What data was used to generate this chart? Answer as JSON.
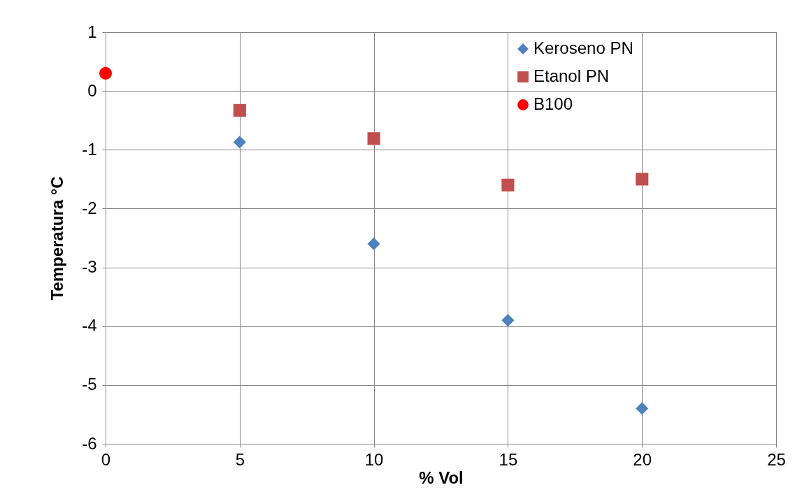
{
  "chart_data": {
    "type": "scatter",
    "xlabel": "% Vol",
    "ylabel": "Temperatura °C",
    "xlim": [
      0,
      25
    ],
    "xticks": [
      0,
      5,
      10,
      15,
      20,
      25
    ],
    "ylim": [
      -6,
      1
    ],
    "yticks": [
      -6,
      -5,
      -4,
      -3,
      -2,
      -1,
      0,
      1
    ],
    "grid": true,
    "legend": "top right",
    "series": [
      {
        "name": "Keroseno PN",
        "color": "#4f81bd",
        "marker": "diamond",
        "x": [
          5,
          10,
          15,
          20
        ],
        "values": [
          -0.87,
          -2.6,
          -3.9,
          -5.4
        ]
      },
      {
        "name": "Etanol PN",
        "color": "#c0504d",
        "marker": "square",
        "x": [
          5,
          10,
          15,
          20
        ],
        "values": [
          -0.33,
          -0.81,
          -1.6,
          -1.5
        ]
      },
      {
        "name": "B100",
        "color": "#ff0000",
        "marker": "circle",
        "x": [
          0
        ],
        "values": [
          0.3
        ]
      }
    ]
  }
}
